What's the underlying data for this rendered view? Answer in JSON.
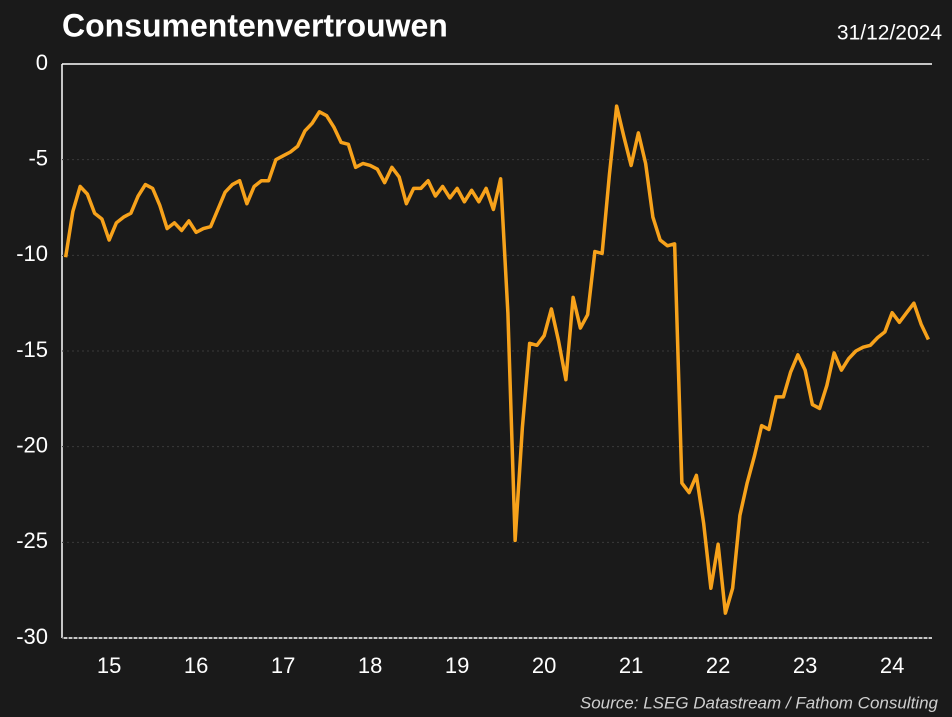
{
  "chart_data": {
    "type": "line",
    "title": "Consumentenvertrouwen",
    "subtitle": "31/12/2024",
    "source": "Source: LSEG Datastream / Fathom Consulting",
    "categories": [
      null,
      null,
      null,
      null,
      null,
      null,
      "15",
      null,
      null,
      null,
      null,
      null,
      null,
      null,
      null,
      null,
      null,
      null,
      "16",
      null,
      null,
      null,
      null,
      null,
      null,
      null,
      null,
      null,
      null,
      null,
      "17",
      null,
      null,
      null,
      null,
      null,
      null,
      null,
      null,
      null,
      null,
      null,
      "18",
      null,
      null,
      null,
      null,
      null,
      null,
      null,
      null,
      null,
      null,
      null,
      "19",
      null,
      null,
      null,
      null,
      null,
      null,
      null,
      null,
      null,
      null,
      null,
      "20",
      null,
      null,
      null,
      null,
      null,
      null,
      null,
      null,
      null,
      null,
      null,
      "21",
      null,
      null,
      null,
      null,
      null,
      null,
      null,
      null,
      null,
      null,
      null,
      "22",
      null,
      null,
      null,
      null,
      null,
      null,
      null,
      null,
      null,
      null,
      null,
      "23",
      null,
      null,
      null,
      null,
      null,
      null,
      null,
      null,
      null,
      null,
      null,
      "24",
      null,
      null,
      null,
      null,
      null
    ],
    "series": [
      {
        "name": "Consumentenvertrouwen",
        "color": "#f7a21b",
        "values": [
          -10.1,
          -7.7,
          -6.4,
          -6.8,
          -7.8,
          -8.1,
          -9.2,
          -8.3,
          -8.0,
          -7.8,
          -6.9,
          -6.3,
          -6.5,
          -7.4,
          -8.6,
          -8.3,
          -8.7,
          -8.2,
          -8.8,
          -8.6,
          -8.5,
          -7.6,
          -6.7,
          -6.3,
          -6.1,
          -7.3,
          -6.4,
          -6.1,
          -6.1,
          -5.0,
          -4.8,
          -4.6,
          -4.3,
          -3.5,
          -3.1,
          -2.5,
          -2.7,
          -3.3,
          -4.1,
          -4.2,
          -5.4,
          -5.2,
          -5.3,
          -5.5,
          -6.2,
          -5.4,
          -5.9,
          -7.3,
          -6.5,
          -6.5,
          -6.1,
          -6.9,
          -6.4,
          -7.0,
          -6.5,
          -7.2,
          -6.6,
          -7.2,
          -6.5,
          -7.6,
          -6.0,
          -13.0,
          -24.9,
          -19.0,
          -14.6,
          -14.7,
          -14.2,
          -12.8,
          -14.5,
          -16.5,
          -12.2,
          -13.8,
          -13.1,
          -9.8,
          -9.9,
          -5.8,
          -2.2,
          -3.8,
          -5.3,
          -3.6,
          -5.2,
          -8.0,
          -9.2,
          -9.5,
          -9.4,
          -21.9,
          -22.4,
          -21.5,
          -24.0,
          -27.4,
          -25.1,
          -28.7,
          -27.4,
          -23.6,
          -21.9,
          -20.5,
          -18.9,
          -19.1,
          -17.4,
          -17.4,
          -16.1,
          -15.2,
          -16.0,
          -17.8,
          -18.0,
          -16.8,
          -15.1,
          -16.0,
          -15.4,
          -15.0,
          -14.8,
          -14.7,
          -14.3,
          -14.0,
          -13.0,
          -13.5,
          -13.0,
          -12.5,
          -13.6,
          -14.4
        ]
      }
    ],
    "ylim": [
      -30,
      0
    ],
    "yticks": [
      -30,
      -25,
      -20,
      -15,
      -10,
      -5,
      0
    ],
    "grid": true
  }
}
